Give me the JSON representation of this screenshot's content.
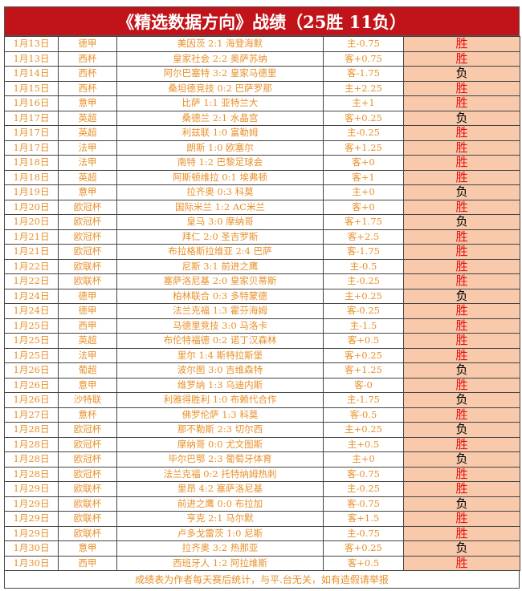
{
  "title": "《精选数据方向》战绩（25胜 11负）",
  "colors": {
    "title_bg": "#c0141a",
    "text": "#e8902a",
    "result_bg": "#f8c9ab",
    "win": "#e81010",
    "loss": "#000000"
  },
  "rows": [
    [
      "1月13日",
      "德甲",
      "美因茨 2:1 海登海默",
      "主-0.75",
      "胜"
    ],
    [
      "1月13日",
      "西杯",
      "皇家社会 2:2 奥萨苏纳",
      "客+0.75",
      "胜"
    ],
    [
      "1月14日",
      "西杯",
      "阿尔巴塞特 3:2 皇家马德里",
      "客-1.75",
      "负"
    ],
    [
      "1月15日",
      "西杯",
      "桑坦德竞技 0:2 巴萨罗那",
      "主+2.25",
      "胜"
    ],
    [
      "1月16日",
      "意甲",
      "比萨 1:1 亚特兰大",
      "主+1",
      "胜"
    ],
    [
      "1月17日",
      "英超",
      "桑德兰 2:1 水晶宫",
      "客+0.25",
      "负"
    ],
    [
      "1月17日",
      "英超",
      "利兹联 1:0 富勒姆",
      "主-0.25",
      "胜"
    ],
    [
      "1月17日",
      "法甲",
      "朗斯 1:0 欧塞尔",
      "客+1.25",
      "胜"
    ],
    [
      "1月18日",
      "法甲",
      "南特 1:2 巴黎足球会",
      "客+0",
      "胜"
    ],
    [
      "1月18日",
      "英超",
      "阿斯顿维拉 0:1 埃弗顿",
      "客+1",
      "胜"
    ],
    [
      "1月19日",
      "意甲",
      "拉齐奥 0:3 科莫",
      "主+0",
      "负"
    ],
    [
      "1月20日",
      "欧冠杯",
      "国际米兰 1:2 AC米兰",
      "客+0",
      "胜"
    ],
    [
      "1月20日",
      "欧冠杯",
      "皇马 3:0 摩纳哥",
      "客+1.75",
      "负"
    ],
    [
      "1月21日",
      "欧冠杯",
      "拜仁 2:0 圣吉罗斯",
      "客+2.5",
      "胜"
    ],
    [
      "1月21日",
      "欧冠杯",
      "布拉格斯拉维亚 2:4 巴萨",
      "客-1.75",
      "胜"
    ],
    [
      "1月22日",
      "欧联杯",
      "尼斯 3:1 前进之鹰",
      "主-0.5",
      "胜"
    ],
    [
      "1月22日",
      "欧联杯",
      "塞萨洛尼基 2:0 皇家贝蒂斯",
      "主-0.25",
      "胜"
    ],
    [
      "1月24日",
      "德甲",
      "柏林联合 0:3 多特蒙德",
      "主+0.25",
      "负"
    ],
    [
      "1月24日",
      "德甲",
      "法兰克福 1:3 霍芬海姆",
      "客-0.25",
      "胜"
    ],
    [
      "1月25日",
      "西甲",
      "马德里竞技 3:0 马洛卡",
      "主-1.5",
      "胜"
    ],
    [
      "1月25日",
      "英超",
      "布伦特福德 0:2 诺丁汉森林",
      "客+0.5",
      "胜"
    ],
    [
      "1月25日",
      "法甲",
      "里尔 1:4 斯特拉斯堡",
      "客+0.25",
      "胜"
    ],
    [
      "1月26日",
      "葡超",
      "波尔图 3:0 吉维森特",
      "客+1.25",
      "负"
    ],
    [
      "1月26日",
      "意甲",
      "维罗纳 1:3 乌迪内斯",
      "客-0",
      "胜"
    ],
    [
      "1月26日",
      "沙特联",
      "利雅得胜利 1:0 布赖代合作",
      "主-1.75",
      "负"
    ],
    [
      "1月27日",
      "意杯",
      "佛罗伦萨 1:3 科莫",
      "客-0.5",
      "胜"
    ],
    [
      "1月28日",
      "欧冠杯",
      "那不勒斯 2:3 切尔西",
      "主+0.25",
      "负"
    ],
    [
      "1月28日",
      "欧冠杯",
      "摩纳哥 0:0 尤文图斯",
      "主+0.5",
      "胜"
    ],
    [
      "1月28日",
      "欧冠杯",
      "毕尔巴鄂 2:3 葡萄牙体育",
      "主+0",
      "负"
    ],
    [
      "1月28日",
      "欧冠杯",
      "法兰克福 0:2 托特纳姆热刺",
      "客-0.75",
      "胜"
    ],
    [
      "1月29日",
      "欧联杯",
      "里昂 4:2 塞萨洛尼基",
      "主-0.25",
      "胜"
    ],
    [
      "1月29日",
      "欧联杯",
      "前进之鹰 0:0 布拉加",
      "客-0.75",
      "负"
    ],
    [
      "1月29日",
      "欧联杯",
      "亨克 2:1 马尔默",
      "客+1.5",
      "胜"
    ],
    [
      "1月29日",
      "欧联杯",
      "卢多戈雷茨 1:0 尼斯",
      "主-0.75",
      "胜"
    ],
    [
      "1月30日",
      "意甲",
      "拉齐奥 3:2 热那亚",
      "客+0.25",
      "负"
    ],
    [
      "1月30日",
      "西甲",
      "西班牙人 1:2 阿拉维斯",
      "客+0.5",
      "胜"
    ]
  ],
  "footer": "成绩表为作者每天赛后统计，与平.台无关，如有造假请举报"
}
